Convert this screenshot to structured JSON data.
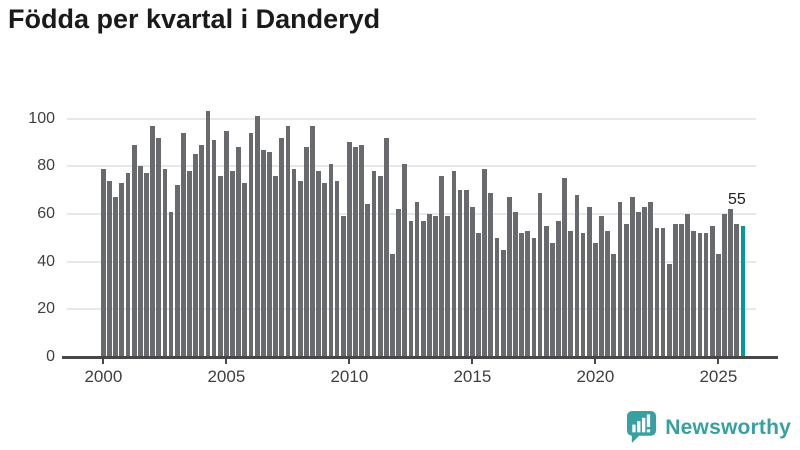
{
  "title": "Födda per kvartal i Danderyd",
  "annotation": {
    "label": "55"
  },
  "branding": {
    "name": "Newsworthy",
    "icon": "newsworthy-speech-bubble-chart-icon",
    "color": "#38a0a0"
  },
  "colors": {
    "bar": "#696a6e",
    "highlight": "#009a9c",
    "gridline": "#e8e8e8",
    "axis": "#474747",
    "title_text": "#1a1a1a",
    "tick_text": "#3f3f3f"
  },
  "chart_data": {
    "type": "bar",
    "title": "Födda per kvartal i Danderyd",
    "xlabel": "",
    "ylabel": "",
    "x_unit": "quarter",
    "x_first_tick": "2000",
    "xticklabels": [
      "2000",
      "2005",
      "2010",
      "2015",
      "2020",
      "2025"
    ],
    "yticks": [
      0,
      20,
      40,
      60,
      80,
      100
    ],
    "ylim": [
      0,
      110
    ],
    "grid": true,
    "legend": "none",
    "highlight_last_bar": true,
    "last_bar_value": 55,
    "values": [
      79,
      74,
      67,
      73,
      77,
      89,
      80,
      77,
      97,
      92,
      79,
      61,
      72,
      94,
      78,
      85,
      89,
      103,
      91,
      76,
      95,
      78,
      88,
      73,
      94,
      101,
      87,
      86,
      76,
      92,
      97,
      79,
      74,
      88,
      97,
      78,
      73,
      81,
      74,
      59,
      90,
      88,
      89,
      64,
      78,
      76,
      92,
      43,
      62,
      81,
      57,
      65,
      57,
      60,
      59,
      76,
      59,
      78,
      70,
      70,
      63,
      52,
      79,
      69,
      50,
      45,
      67,
      61,
      52,
      53,
      50,
      69,
      55,
      48,
      57,
      75,
      53,
      68,
      52,
      63,
      48,
      59,
      53,
      43,
      65,
      56,
      67,
      61,
      63,
      65,
      54,
      54,
      39,
      56,
      56,
      60,
      53,
      52,
      52,
      55,
      43,
      60,
      62,
      56,
      55
    ]
  }
}
